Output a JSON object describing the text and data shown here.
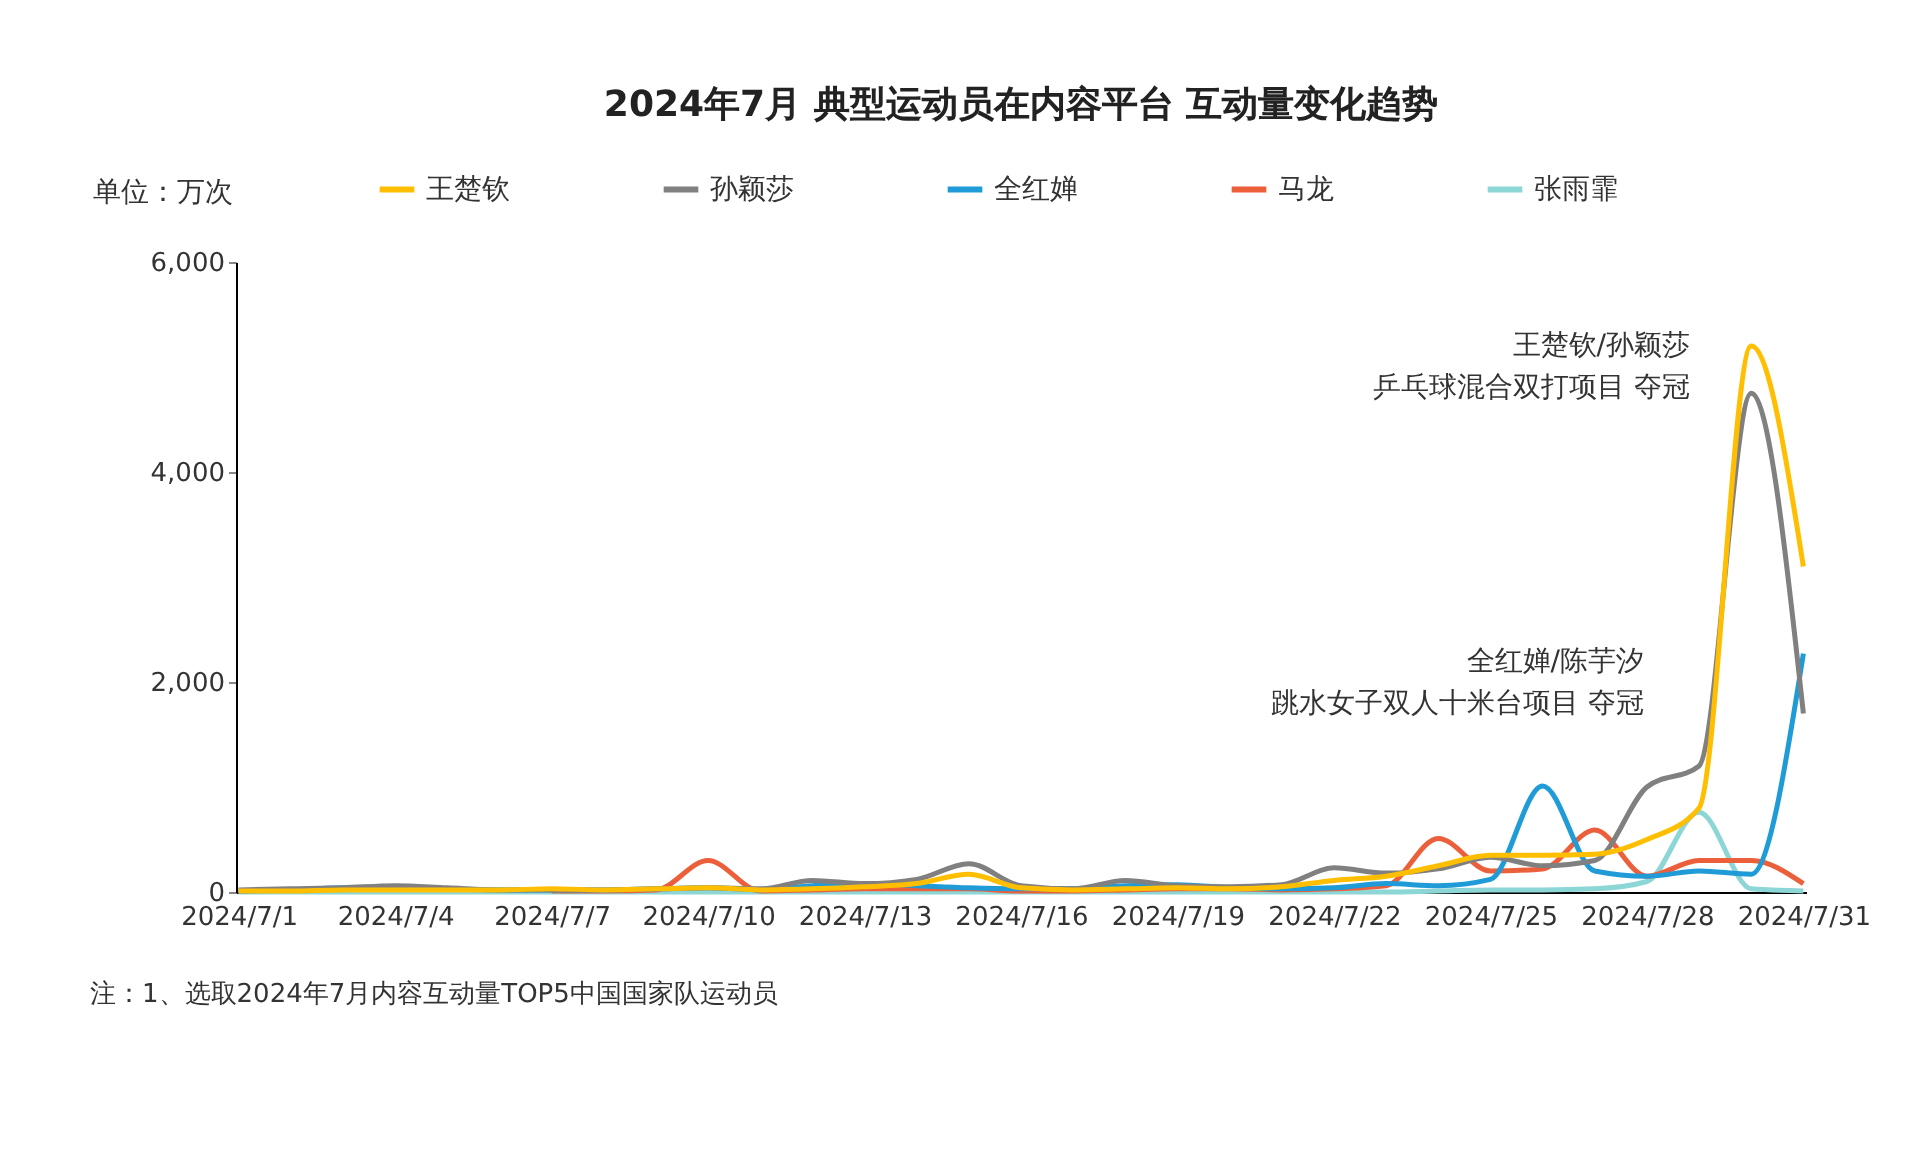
{
  "chart_data": {
    "type": "line",
    "title": "2024年7月 典型运动员在内容平台 互动量变化趋势",
    "ylabel": "单位：万次",
    "categories": [
      "2024/7/1",
      null,
      null,
      "2024/7/4",
      null,
      null,
      "2024/7/7",
      null,
      null,
      "2024/7/10",
      null,
      null,
      "2024/7/13",
      null,
      null,
      "2024/7/16",
      null,
      null,
      "2024/7/19",
      null,
      null,
      "2024/7/22",
      null,
      null,
      "2024/7/25",
      null,
      null,
      "2024/7/28",
      null,
      null,
      "2024/7/31"
    ],
    "ylim": [
      0,
      6000
    ],
    "yticks": [
      0,
      {
        "value": 2000,
        "label": "2,000"
      },
      {
        "value": 4000,
        "label": "4,000"
      },
      {
        "value": 6000,
        "label": "6,000"
      }
    ],
    "legend": "top",
    "line_style": "solid",
    "series": [
      {
        "name": "王楚钦",
        "color": "#ffbf00",
        "values": [
          10,
          10,
          20,
          20,
          20,
          20,
          30,
          20,
          30,
          40,
          20,
          30,
          50,
          80,
          170,
          40,
          20,
          30,
          40,
          30,
          50,
          110,
          150,
          250,
          350,
          350,
          360,
          500,
          800,
          5200,
          3100
        ]
      },
      {
        "name": "孙颖莎",
        "color": "#808080",
        "values": [
          20,
          30,
          40,
          60,
          40,
          20,
          20,
          20,
          30,
          40,
          30,
          110,
          80,
          120,
          270,
          60,
          30,
          110,
          60,
          50,
          70,
          230,
          180,
          220,
          330,
          250,
          300,
          1000,
          1200,
          4750,
          1700
        ]
      },
      {
        "name": "全红婵",
        "color": "#1f9bd7",
        "values": [
          10,
          20,
          40,
          40,
          30,
          20,
          20,
          20,
          30,
          40,
          20,
          60,
          80,
          60,
          40,
          30,
          30,
          60,
          70,
          40,
          30,
          40,
          80,
          60,
          120,
          1010,
          200,
          150,
          200,
          170,
          2270
        ]
      },
      {
        "name": "马龙",
        "color": "#ec5f3b",
        "values": [
          null,
          null,
          null,
          null,
          null,
          null,
          10,
          10,
          20,
          300,
          10,
          20,
          30,
          30,
          30,
          10,
          10,
          20,
          30,
          30,
          20,
          30,
          60,
          510,
          200,
          220,
          590,
          150,
          300,
          300,
          80
        ]
      },
      {
        "name": "张雨霏",
        "color": "#8dd6d6",
        "values": [
          0,
          0,
          0,
          0,
          0,
          0,
          0,
          0,
          0,
          0,
          0,
          0,
          0,
          0,
          0,
          0,
          0,
          0,
          0,
          0,
          0,
          0,
          0,
          10,
          20,
          20,
          30,
          100,
          760,
          30,
          10
        ]
      }
    ],
    "annotations": [
      "王楚钦/孙颖莎",
      "乒乓球混合双打项目 夺冠",
      "全红婵/陈芋汐",
      "跳水女子双人十米台项目 夺冠",
      "注：1、选取2024年7月内容互动量TOP5中国国家队运动员"
    ]
  }
}
